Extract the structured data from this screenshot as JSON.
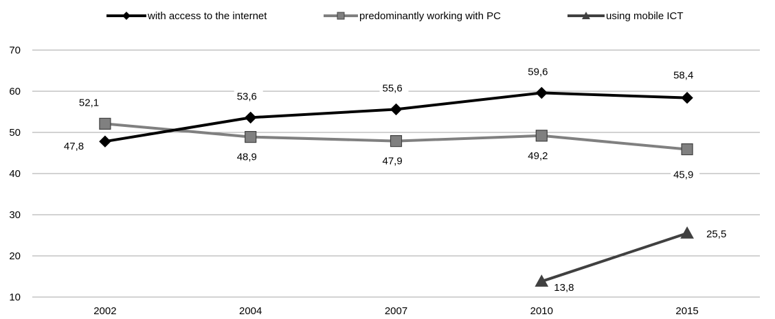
{
  "chart_data": {
    "type": "line",
    "categories": [
      "2002",
      "2004",
      "2007",
      "2010",
      "2015"
    ],
    "ylim": [
      10,
      70
    ],
    "yticks": [
      10,
      20,
      30,
      40,
      50,
      60,
      70
    ],
    "grid": true,
    "legend_position": "top",
    "series": [
      {
        "name": "with access to the internet",
        "color": "#000000",
        "marker": "diamond",
        "values": [
          47.8,
          53.6,
          55.6,
          59.6,
          58.4
        ],
        "labels": [
          "47,8",
          "53,6",
          "55,6",
          "59,6",
          "58,4"
        ]
      },
      {
        "name": "predominantly working with PC",
        "color": "#808080",
        "marker": "square",
        "values": [
          52.1,
          48.9,
          47.9,
          49.2,
          45.9
        ],
        "labels": [
          "52,1",
          "48,9",
          "47,9",
          "49,2",
          "45,9"
        ]
      },
      {
        "name": "using mobile ICT",
        "color": "#404040",
        "marker": "triangle",
        "values": [
          null,
          null,
          null,
          13.8,
          25.5
        ],
        "labels": [
          "",
          "",
          "",
          "13,8",
          "25,5"
        ]
      }
    ]
  }
}
